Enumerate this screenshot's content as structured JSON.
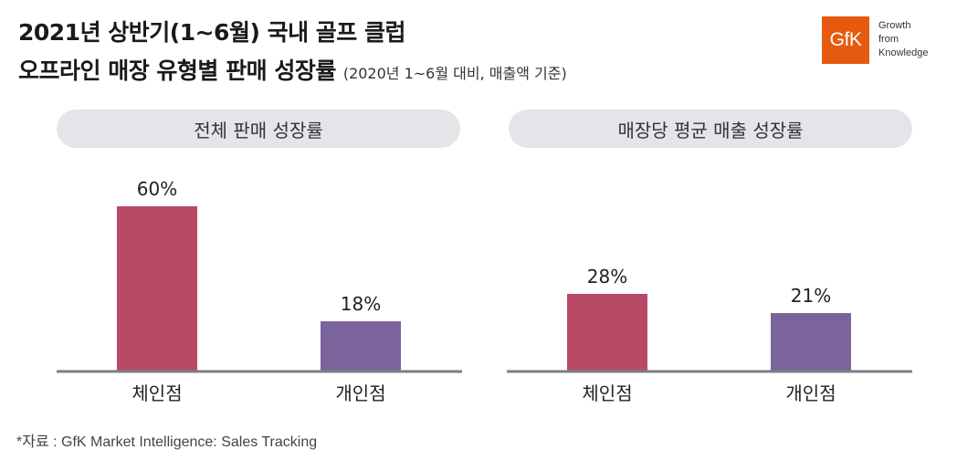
{
  "title": {
    "line1": "2021년 상반기(1~6월) 국내 골프 클럽",
    "line2": "오프라인 매장 유형별 판매 성장률",
    "note": "(2020년 1~6월 대비, 매출액 기준)"
  },
  "logo": {
    "text": "GfK",
    "tagline": [
      "Growth",
      "from",
      "Knowledge"
    ]
  },
  "source": "*자료 : GfK Market Intelligence: Sales Tracking",
  "colors": {
    "chain": "#b84a67",
    "individual": "#7a649b",
    "axis": "#7b7f84",
    "pill": "#e3e5e8",
    "brand": "#e55a0f"
  },
  "chart_data": [
    {
      "type": "bar",
      "title": "전체 판매 성장률",
      "categories": [
        "체인점",
        "개인점"
      ],
      "values": [
        60,
        18
      ],
      "labels": [
        "60%",
        "18%"
      ],
      "colors": [
        "#b84a67",
        "#7a649b"
      ],
      "ylim": [
        0,
        70
      ],
      "grid": false
    },
    {
      "type": "bar",
      "title": "매장당 평균 매출 성장률",
      "categories": [
        "체인점",
        "개인점"
      ],
      "values": [
        28,
        21
      ],
      "labels": [
        "28%",
        "21%"
      ],
      "colors": [
        "#b84a67",
        "#7a649b"
      ],
      "ylim": [
        0,
        70
      ],
      "grid": false
    }
  ]
}
